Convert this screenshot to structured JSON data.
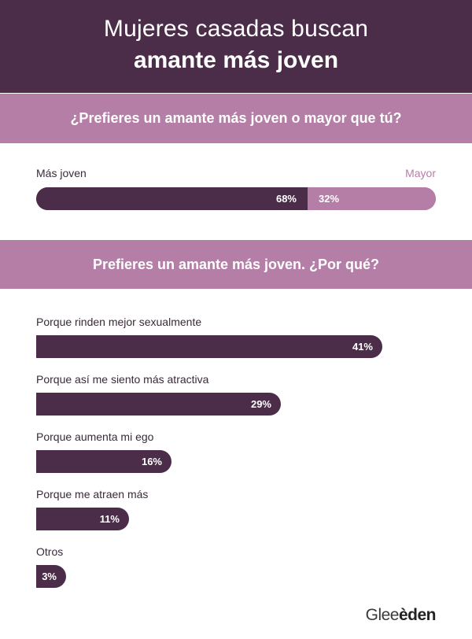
{
  "header": {
    "line1": "Mujeres casadas buscan",
    "line2": "amante más joven"
  },
  "question1": "¿Prefieres un amante más joven o mayor que tú?",
  "question2": "Prefieres un amante más joven.  ¿Por qué?",
  "brand": {
    "part1": "Glee",
    "part2": "den",
    "accent_letter": "è"
  },
  "colors": {
    "dark": "#4b2c49",
    "accent": "#b57ea6"
  },
  "chart_data": [
    {
      "type": "bar",
      "orientation": "horizontal-stacked",
      "title": "¿Prefieres un amante más joven o mayor que tú?",
      "categories": [
        "Más joven",
        "Mayor"
      ],
      "values": [
        68,
        32
      ],
      "value_labels": [
        "68%",
        "32%"
      ],
      "unit": "%"
    },
    {
      "type": "bar",
      "orientation": "horizontal",
      "title": "Prefieres un amante más joven.  ¿Por qué?",
      "categories": [
        "Porque rinden mejor sexualmente",
        "Porque así me siento más atractiva",
        "Porque aumenta mi ego",
        "Porque me atraen más",
        "Otros"
      ],
      "values": [
        41,
        29,
        16,
        11,
        3
      ],
      "value_labels": [
        "41%",
        "29%",
        "16%",
        "11%",
        "3%"
      ],
      "unit": "%",
      "xlim": [
        0,
        50
      ]
    }
  ]
}
